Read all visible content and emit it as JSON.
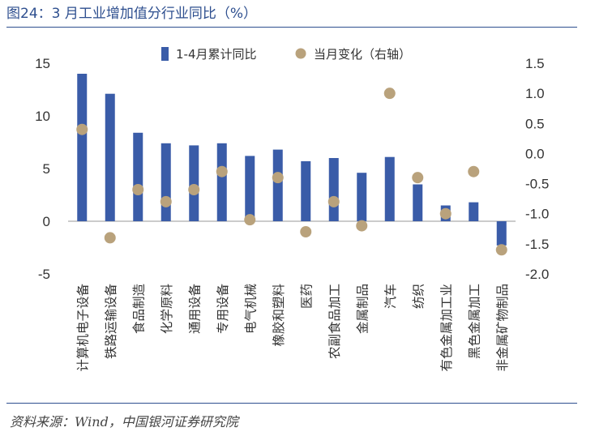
{
  "header": {
    "title": "图24：3 月工业增加值分行业同比（%）"
  },
  "footer": {
    "source": "资料来源：Wind，中国银河证券研究院"
  },
  "chart_data": {
    "type": "bar",
    "categories": [
      "计算机电子设备",
      "铁路运输设备",
      "食品制造",
      "化学原料",
      "通用设备",
      "专用设备",
      "电气机械",
      "橡胶和塑料",
      "医药",
      "农副食品加工",
      "金属制品",
      "汽车",
      "纺织",
      "有色金属加工业",
      "黑色金属加工",
      "非金属矿物制品"
    ],
    "series": [
      {
        "name": "1-4月累计同比",
        "type": "bar",
        "axis": "left",
        "color": "#3a5ca8",
        "values": [
          14.0,
          12.1,
          8.4,
          7.4,
          7.2,
          7.4,
          6.2,
          6.8,
          5.7,
          6.0,
          4.6,
          6.1,
          3.5,
          1.5,
          1.8,
          -2.3
        ]
      },
      {
        "name": "当月变化（右轴）",
        "type": "scatter",
        "axis": "right",
        "color": "#b9a27c",
        "values": [
          0.4,
          -1.4,
          -0.6,
          -0.8,
          -0.6,
          -0.3,
          -1.1,
          -0.4,
          -1.3,
          -0.8,
          -1.2,
          1.0,
          -0.4,
          -1.0,
          -0.3,
          -1.6
        ]
      }
    ],
    "y_left": {
      "min": -5,
      "max": 15,
      "ticks": [
        "-5",
        "0",
        "5",
        "10",
        "15"
      ]
    },
    "y_right": {
      "min": -2.0,
      "max": 1.5,
      "ticks": [
        "-2.0",
        "-1.5",
        "-1.0",
        "-0.5",
        "0.0",
        "0.5",
        "1.0",
        "1.5"
      ]
    },
    "legend_position": "top-center",
    "grid": false
  }
}
